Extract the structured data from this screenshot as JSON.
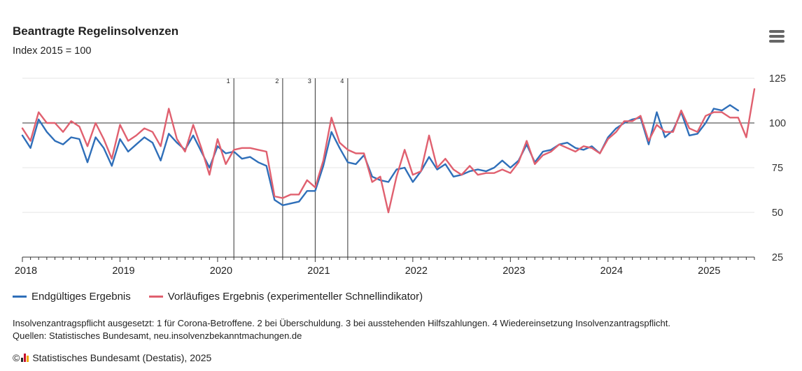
{
  "header": {
    "title": "Beantragte Regelinsolvenzen",
    "subtitle": "Index 2015 = 100"
  },
  "chart_data": {
    "type": "line",
    "title": "Beantragte Regelinsolvenzen",
    "subtitle": "Index 2015 = 100",
    "x_ticks": [
      "2018",
      "2019",
      "2020",
      "2021",
      "2022",
      "2023",
      "2024",
      "2025"
    ],
    "y_ticks": [
      "25",
      "50",
      "75",
      "100",
      "125"
    ],
    "ylim": [
      25,
      125
    ],
    "xlim": [
      "2018-01",
      "2025-07"
    ],
    "reference_line": 100,
    "grid": true,
    "legend_position": "bottom-left",
    "event_markers": [
      {
        "label": "1",
        "x": "2020-03"
      },
      {
        "label": "2",
        "x": "2020-09"
      },
      {
        "label": "3",
        "x": "2021-01"
      },
      {
        "label": "4",
        "x": "2021-05"
      }
    ],
    "series": [
      {
        "name": "Endgültiges Ergebnis",
        "color": "#2f6fb9",
        "start": "2018-01",
        "values": [
          93,
          86,
          102,
          95,
          90,
          88,
          92,
          91,
          78,
          92,
          86,
          76,
          91,
          84,
          88,
          92,
          89,
          79,
          94,
          89,
          85,
          93,
          84,
          75,
          87,
          83,
          84,
          80,
          81,
          78,
          76,
          57,
          54,
          55,
          56,
          62,
          62,
          76,
          95,
          86,
          78,
          77,
          82,
          70,
          68,
          67,
          74,
          75,
          67,
          73,
          81,
          74,
          77,
          70,
          71,
          73,
          74,
          73,
          75,
          79,
          75,
          79,
          88,
          78,
          84,
          85,
          88,
          89,
          86,
          85,
          87,
          83,
          92,
          97,
          100,
          102,
          103,
          88,
          106,
          92,
          96,
          106,
          93,
          94,
          100,
          108,
          107,
          110,
          107
        ],
        "end": "2025-05"
      },
      {
        "name": "Vorläufiges Ergebnis (experimenteller Schnellindikator)",
        "color": "#e0606f",
        "start": "2018-01",
        "values": [
          97,
          90,
          106,
          100,
          100,
          95,
          101,
          98,
          87,
          100,
          91,
          80,
          99,
          90,
          93,
          97,
          95,
          87,
          108,
          91,
          84,
          99,
          86,
          71,
          91,
          77,
          85,
          86,
          86,
          85,
          84,
          59,
          58,
          60,
          60,
          68,
          64,
          79,
          103,
          89,
          85,
          83,
          83,
          67,
          70,
          50,
          70,
          85,
          71,
          73,
          93,
          75,
          80,
          74,
          71,
          76,
          71,
          72,
          72,
          74,
          72,
          78,
          90,
          77,
          82,
          84,
          88,
          86,
          84,
          87,
          86,
          83,
          91,
          95,
          101,
          101,
          104,
          90,
          99,
          95,
          95,
          107,
          97,
          95,
          104,
          106,
          106,
          103,
          103,
          92,
          119
        ],
        "end": "2025-07"
      }
    ]
  },
  "legend": {
    "items": [
      {
        "label": "Endgültiges Ergebnis",
        "color": "#2f6fb9"
      },
      {
        "label": "Vorläufiges Ergebnis (experimenteller Schnellindikator)",
        "color": "#e0606f"
      }
    ]
  },
  "notes": {
    "footnote": "Insolvenzantragspflicht ausgesetzt: 1 für Corona-Betroffene. 2 bei Überschuldung. 3 bei ausstehenden Hilfszahlungen. 4 Wiedereinsetzung Insolvenzantragspflicht.",
    "sources": "Quellen: Statistisches Bundesamt, neu.insolvenzbekanntmachungen.de",
    "copyright_symbol": "©",
    "credit": "Statistisches Bundesamt (Destatis), 2025"
  },
  "icons": {
    "menu": "hamburger-menu-icon",
    "logo": "destatis-logo-icon"
  },
  "colors": {
    "axis": "#333333",
    "grid": "#e6e6e6",
    "logo": [
      "#2a2a2a",
      "#c8102e",
      "#f2a900"
    ]
  }
}
